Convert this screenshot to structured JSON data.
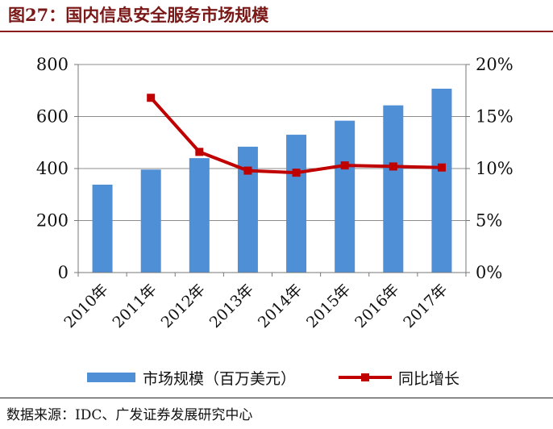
{
  "figure": {
    "title": "图27：国内信息安全服务市场规模",
    "source": "数据来源：IDC、广发证券发展研究中心"
  },
  "colors": {
    "bar": "#4f8fd6",
    "line": "#c00000",
    "title": "#7a1717",
    "rule": "#8a1c1c"
  },
  "chart_data": {
    "type": "bar",
    "categories": [
      "2010年",
      "2011年",
      "2012年",
      "2013年",
      "2014年",
      "2015年",
      "2016年",
      "2017年"
    ],
    "series": [
      {
        "name": "市场规模（百万美元）",
        "type": "bar",
        "axis": "left",
        "values": [
          338,
          396,
          440,
          484,
          530,
          584,
          643,
          707
        ]
      },
      {
        "name": "同比增长",
        "type": "line",
        "axis": "right",
        "marker": "square",
        "values": [
          null,
          16.8,
          11.6,
          9.8,
          9.6,
          10.3,
          10.2,
          10.1
        ]
      }
    ],
    "y_left": {
      "min": 0,
      "max": 800,
      "ticks": [
        0,
        200,
        400,
        600,
        800
      ],
      "tick_labels": [
        "0",
        "200",
        "400",
        "600",
        "800"
      ]
    },
    "y_right": {
      "min": 0,
      "max": 20,
      "ticks": [
        0,
        5,
        10,
        15,
        20
      ],
      "tick_labels": [
        "0%",
        "5%",
        "10%",
        "15%",
        "20%"
      ]
    },
    "grid": true,
    "legend_position": "bottom",
    "xlabel": "",
    "ylabel": ""
  }
}
